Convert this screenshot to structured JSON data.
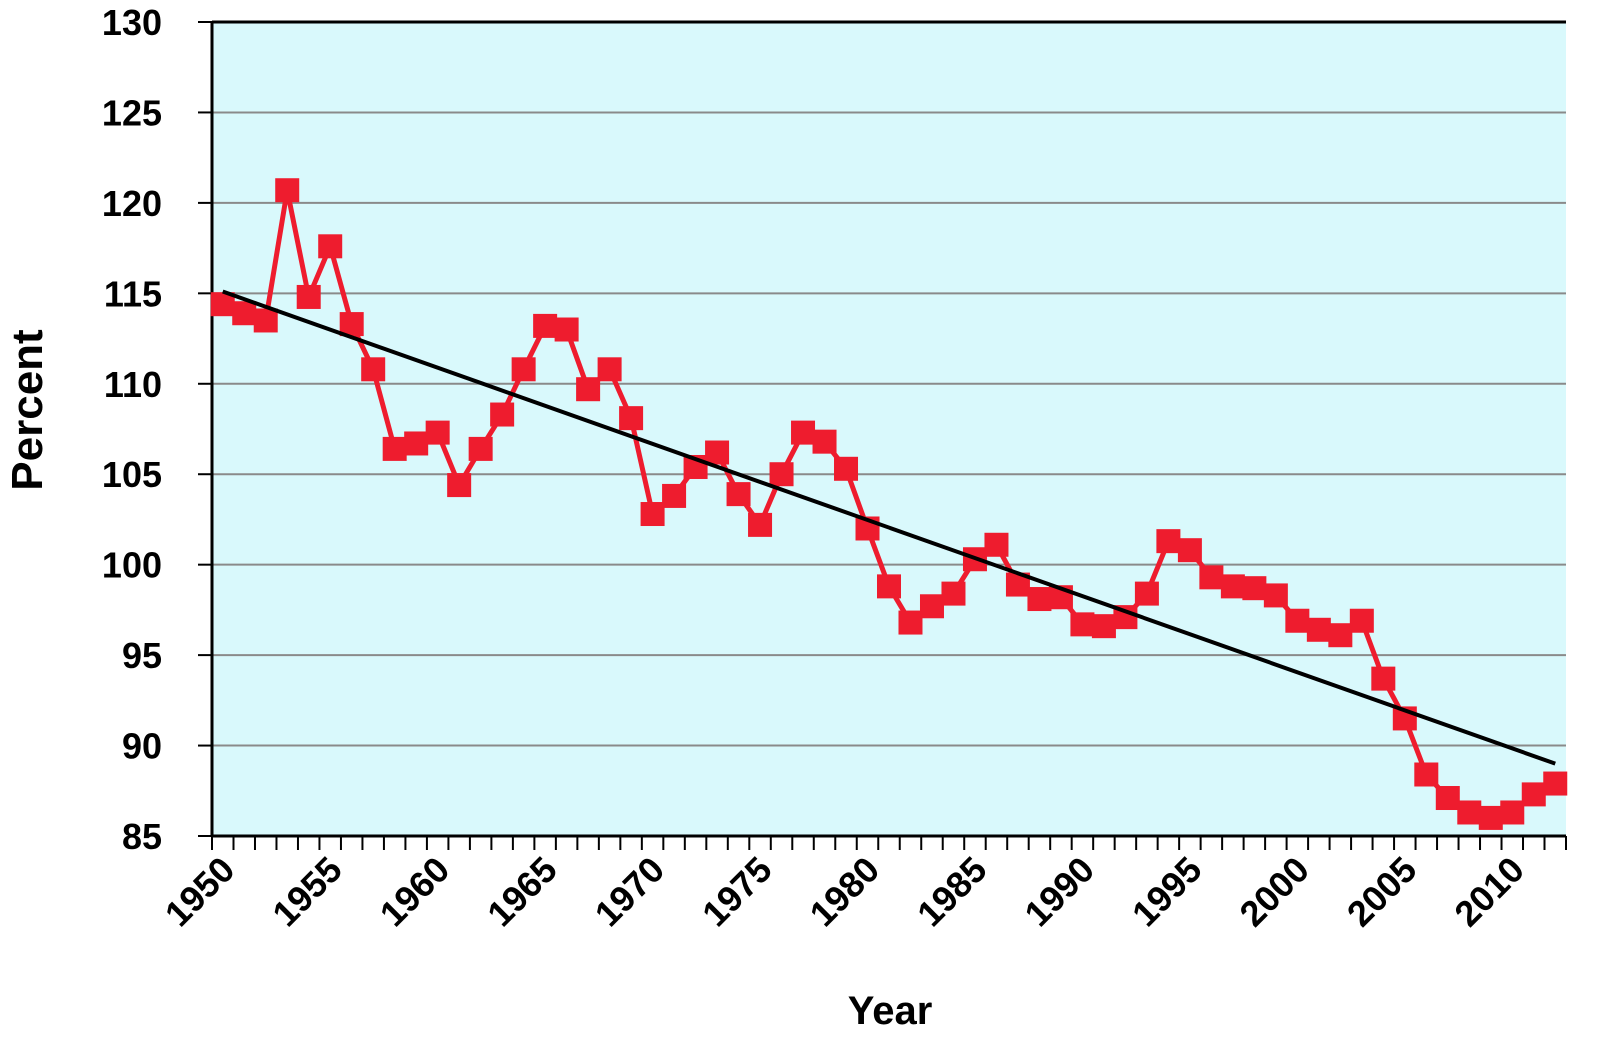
{
  "chart_data": {
    "type": "line",
    "x_label": "Year",
    "y_label": "Percent",
    "xlim": [
      1949.5,
      2012.5
    ],
    "xticks": [
      1950,
      1955,
      1960,
      1965,
      1970,
      1975,
      1980,
      1985,
      1990,
      1995,
      2000,
      2005,
      2010
    ],
    "ylim": [
      85,
      130
    ],
    "yticks": [
      85,
      90,
      95,
      100,
      105,
      110,
      115,
      120,
      125,
      130
    ],
    "grid": true,
    "background": "#d9f9fc",
    "series": [
      {
        "color": "#ee1c2e",
        "markers": true,
        "x": [
          1950,
          1951,
          1952,
          1953,
          1954,
          1955,
          1956,
          1957,
          1958,
          1959,
          1960,
          1961,
          1962,
          1963,
          1964,
          1965,
          1966,
          1967,
          1968,
          1969,
          1970,
          1971,
          1972,
          1973,
          1974,
          1975,
          1976,
          1977,
          1978,
          1979,
          1980,
          1981,
          1982,
          1983,
          1984,
          1985,
          1986,
          1987,
          1988,
          1989,
          1990,
          1991,
          1992,
          1993,
          1994,
          1995,
          1996,
          1997,
          1998,
          1999,
          2000,
          2001,
          2002,
          2003,
          2004,
          2005,
          2006,
          2007,
          2008,
          2009,
          2010,
          2011,
          2012
        ],
        "values": [
          114.4,
          113.9,
          113.5,
          120.7,
          114.8,
          117.6,
          113.3,
          110.8,
          106.4,
          106.7,
          107.3,
          104.4,
          106.4,
          108.3,
          110.8,
          113.2,
          113.0,
          109.7,
          110.8,
          108.1,
          102.8,
          103.8,
          105.4,
          106.2,
          103.9,
          102.2,
          105.0,
          107.3,
          106.8,
          105.3,
          102.0,
          98.8,
          96.8,
          97.7,
          98.4,
          100.3,
          101.1,
          98.9,
          98.1,
          98.2,
          96.7,
          96.6,
          97.1,
          98.4,
          101.3,
          100.8,
          99.3,
          98.8,
          98.7,
          98.3,
          96.9,
          96.4,
          96.1,
          96.9,
          93.7,
          91.5,
          88.4,
          87.1,
          86.3,
          86.0,
          86.3,
          87.3,
          87.9
        ]
      },
      {
        "color": "#000000",
        "markers": false,
        "x": [
          1950,
          2012
        ],
        "values": [
          115.1,
          89.0
        ]
      }
    ]
  }
}
